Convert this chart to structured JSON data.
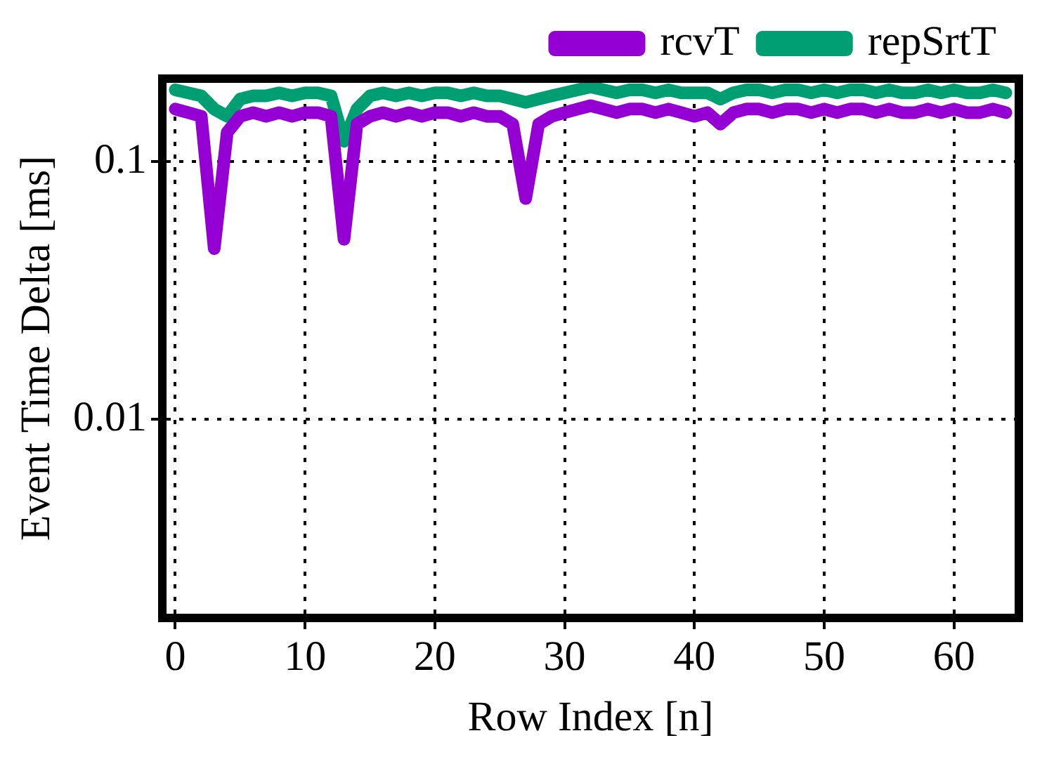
{
  "chart_data": {
    "type": "line",
    "xlabel": "Row Index [n]",
    "ylabel": "Event Time Delta [ms]",
    "x": [
      0,
      1,
      2,
      3,
      4,
      5,
      6,
      7,
      8,
      9,
      10,
      11,
      12,
      13,
      14,
      15,
      16,
      17,
      18,
      19,
      20,
      21,
      22,
      23,
      24,
      25,
      26,
      27,
      28,
      29,
      30,
      31,
      32,
      33,
      34,
      35,
      36,
      37,
      38,
      39,
      40,
      41,
      42,
      43,
      44,
      45,
      46,
      47,
      48,
      49,
      50,
      51,
      52,
      53,
      54,
      55,
      56,
      57,
      58,
      59,
      60,
      61,
      62,
      63,
      64
    ],
    "series": [
      {
        "name": "rcvT",
        "color": "#9400d3",
        "values": [
          0.16,
          0.155,
          0.15,
          0.046,
          0.13,
          0.15,
          0.155,
          0.15,
          0.155,
          0.15,
          0.155,
          0.155,
          0.15,
          0.05,
          0.14,
          0.15,
          0.155,
          0.15,
          0.155,
          0.15,
          0.155,
          0.155,
          0.15,
          0.155,
          0.15,
          0.15,
          0.14,
          0.072,
          0.14,
          0.15,
          0.155,
          0.16,
          0.165,
          0.16,
          0.155,
          0.16,
          0.16,
          0.155,
          0.16,
          0.155,
          0.15,
          0.155,
          0.14,
          0.155,
          0.16,
          0.16,
          0.155,
          0.16,
          0.16,
          0.155,
          0.16,
          0.155,
          0.16,
          0.16,
          0.155,
          0.16,
          0.155,
          0.155,
          0.16,
          0.155,
          0.16,
          0.155,
          0.155,
          0.16,
          0.155
        ]
      },
      {
        "name": "repSrtT",
        "color": "#009e73",
        "values": [
          0.19,
          0.185,
          0.18,
          0.16,
          0.15,
          0.175,
          0.18,
          0.18,
          0.185,
          0.18,
          0.185,
          0.185,
          0.18,
          0.12,
          0.16,
          0.18,
          0.185,
          0.18,
          0.185,
          0.18,
          0.185,
          0.185,
          0.18,
          0.185,
          0.18,
          0.18,
          0.175,
          0.17,
          0.175,
          0.18,
          0.185,
          0.19,
          0.195,
          0.19,
          0.185,
          0.19,
          0.19,
          0.185,
          0.19,
          0.185,
          0.185,
          0.185,
          0.175,
          0.185,
          0.19,
          0.19,
          0.185,
          0.19,
          0.19,
          0.185,
          0.19,
          0.185,
          0.19,
          0.19,
          0.185,
          0.19,
          0.185,
          0.185,
          0.19,
          0.185,
          0.19,
          0.185,
          0.185,
          0.19,
          0.185
        ]
      }
    ],
    "xlim": [
      -1,
      65
    ],
    "xticks": [
      0,
      10,
      20,
      30,
      40,
      50,
      60
    ],
    "ylim": [
      0.0017,
      0.21
    ],
    "yticks": [
      0.01,
      0.1
    ],
    "log": "y",
    "grid": true,
    "legend": "top right",
    "marker": "none",
    "line_style": "solid"
  }
}
